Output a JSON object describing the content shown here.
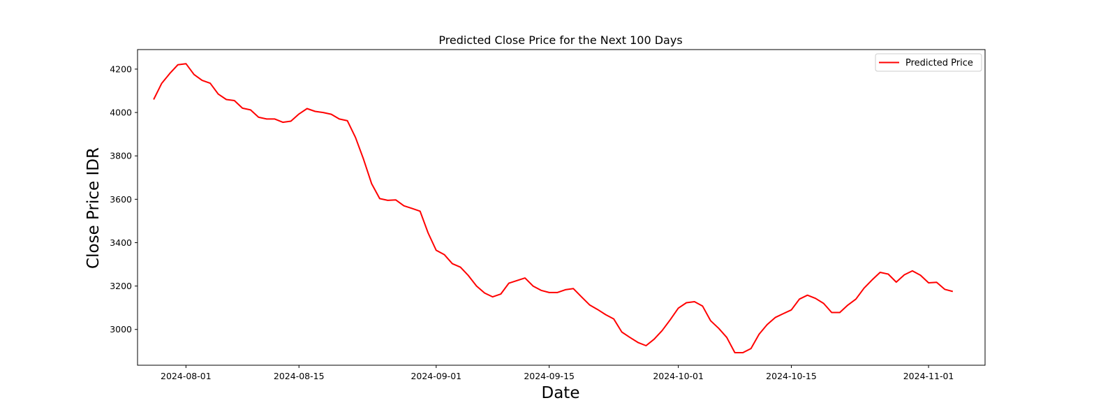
{
  "chart_data": {
    "type": "line",
    "title": "Predicted Close Price for the Next 100 Days",
    "xlabel": "Date",
    "ylabel": "Close Price IDR",
    "x_ticks": [
      "2024-08-01",
      "2024-08-15",
      "2024-09-01",
      "2024-09-15",
      "2024-10-01",
      "2024-10-15",
      "2024-11-01"
    ],
    "y_ticks": [
      3000,
      3200,
      3400,
      3600,
      3800,
      4000,
      4200
    ],
    "xlim": [
      "2024-07-26",
      "2024-11-08"
    ],
    "ylim": [
      2835,
      4290
    ],
    "grid": false,
    "legend_position": "top-right",
    "series": [
      {
        "name": "Predicted Price",
        "color": "#ff0000",
        "x": [
          "2024-07-28",
          "2024-07-29",
          "2024-07-30",
          "2024-07-31",
          "2024-08-01",
          "2024-08-02",
          "2024-08-03",
          "2024-08-04",
          "2024-08-05",
          "2024-08-06",
          "2024-08-07",
          "2024-08-08",
          "2024-08-09",
          "2024-08-10",
          "2024-08-11",
          "2024-08-12",
          "2024-08-13",
          "2024-08-14",
          "2024-08-15",
          "2024-08-16",
          "2024-08-17",
          "2024-08-18",
          "2024-08-19",
          "2024-08-20",
          "2024-08-21",
          "2024-08-22",
          "2024-08-23",
          "2024-08-24",
          "2024-08-25",
          "2024-08-26",
          "2024-08-27",
          "2024-08-28",
          "2024-08-29",
          "2024-08-30",
          "2024-08-31",
          "2024-09-01",
          "2024-09-02",
          "2024-09-03",
          "2024-09-04",
          "2024-09-05",
          "2024-09-06",
          "2024-09-07",
          "2024-09-08",
          "2024-09-09",
          "2024-09-10",
          "2024-09-11",
          "2024-09-12",
          "2024-09-13",
          "2024-09-14",
          "2024-09-15",
          "2024-09-16",
          "2024-09-17",
          "2024-09-18",
          "2024-09-19",
          "2024-09-20",
          "2024-09-21",
          "2024-09-22",
          "2024-09-23",
          "2024-09-24",
          "2024-09-25",
          "2024-09-26",
          "2024-09-27",
          "2024-09-28",
          "2024-09-29",
          "2024-09-30",
          "2024-10-01",
          "2024-10-02",
          "2024-10-03",
          "2024-10-04",
          "2024-10-05",
          "2024-10-06",
          "2024-10-07",
          "2024-10-08",
          "2024-10-09",
          "2024-10-10",
          "2024-10-11",
          "2024-10-12",
          "2024-10-13",
          "2024-10-14",
          "2024-10-15",
          "2024-10-16",
          "2024-10-17",
          "2024-10-18",
          "2024-10-19",
          "2024-10-20",
          "2024-10-21",
          "2024-10-22",
          "2024-10-23",
          "2024-10-24",
          "2024-10-25",
          "2024-10-26",
          "2024-10-27",
          "2024-10-28",
          "2024-10-29",
          "2024-10-30",
          "2024-10-31",
          "2024-11-01",
          "2024-11-02",
          "2024-11-03",
          "2024-11-04"
        ],
        "y": [
          4060,
          4135,
          4180,
          4220,
          4225,
          4175,
          4148,
          4135,
          4085,
          4060,
          4055,
          4020,
          4012,
          3978,
          3970,
          3970,
          3955,
          3960,
          3993,
          4018,
          4005,
          4000,
          3992,
          3970,
          3962,
          3885,
          3785,
          3672,
          3603,
          3595,
          3597,
          3570,
          3558,
          3545,
          3445,
          3365,
          3345,
          3303,
          3287,
          3248,
          3200,
          3168,
          3150,
          3163,
          3213,
          3225,
          3237,
          3200,
          3180,
          3170,
          3170,
          3183,
          3188,
          3150,
          3113,
          3092,
          3068,
          3048,
          2988,
          2963,
          2940,
          2925,
          2955,
          2995,
          3045,
          3098,
          3123,
          3128,
          3108,
          3040,
          3005,
          2963,
          2893,
          2893,
          2912,
          2978,
          3022,
          3055,
          3073,
          3090,
          3140,
          3158,
          3143,
          3120,
          3078,
          3078,
          3112,
          3140,
          3190,
          3228,
          3263,
          3255,
          3218,
          3252,
          3270,
          3250,
          3215,
          3217,
          3185,
          3175
        ]
      }
    ]
  }
}
